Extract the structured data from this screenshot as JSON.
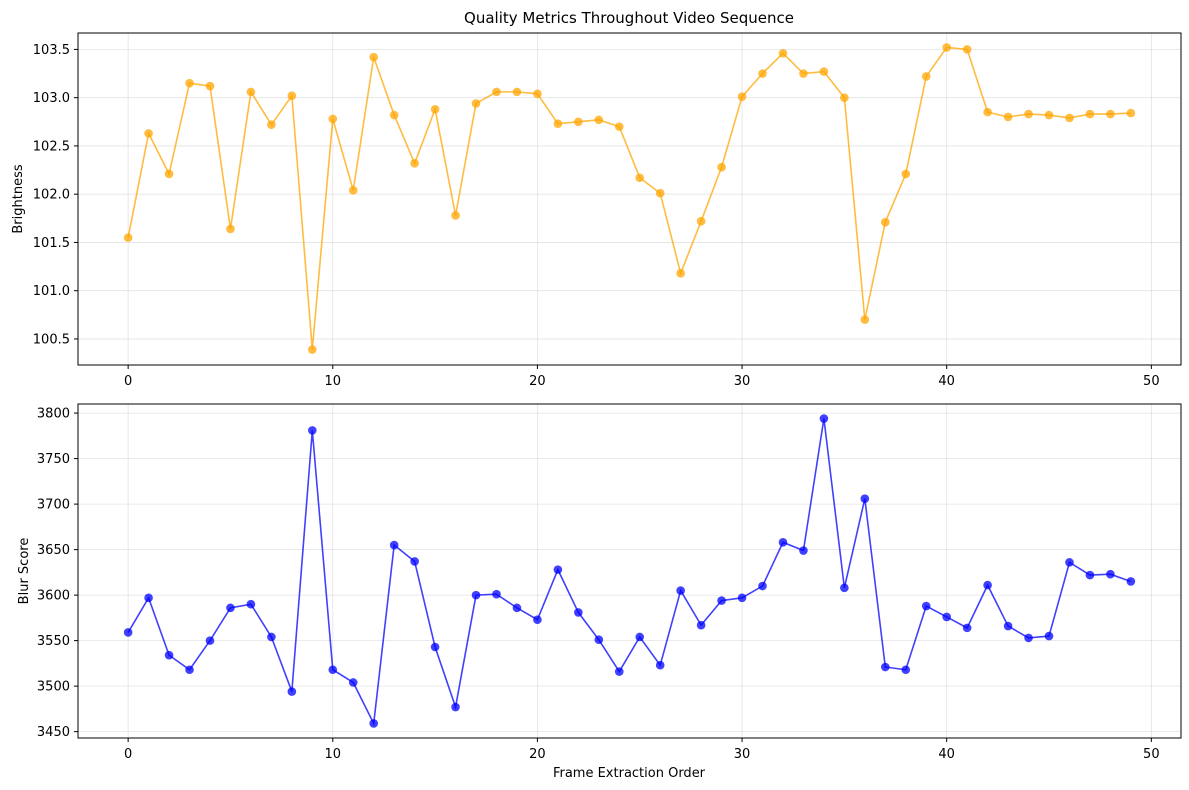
{
  "chart_data": [
    {
      "type": "line",
      "title": "Quality Metrics Throughout Video Sequence",
      "xlabel": "",
      "ylabel": "Brightness",
      "xlim": [
        -2.45,
        51.45
      ],
      "ylim": [
        100.23,
        103.67
      ],
      "xticks": [
        0,
        10,
        20,
        30,
        40,
        50
      ],
      "yticks": [
        100.5,
        101.0,
        101.5,
        102.0,
        102.5,
        103.0,
        103.5
      ],
      "ytick_labels": [
        "100.5",
        "101.0",
        "101.5",
        "102.0",
        "102.5",
        "103.0",
        "103.5"
      ],
      "grid": true,
      "color": "#FFA500",
      "series": [
        {
          "x": [
            0,
            1,
            2,
            3,
            4,
            5,
            6,
            7,
            8,
            9,
            10,
            11,
            12,
            13,
            14,
            15,
            16,
            17,
            18,
            19,
            20,
            21,
            22,
            23,
            24,
            25,
            26,
            27,
            28,
            29,
            30,
            31,
            32,
            33,
            34,
            35,
            36,
            37,
            38,
            39,
            40,
            41,
            42,
            43,
            44,
            45,
            46,
            47,
            48,
            49
          ],
          "values": [
            101.55,
            102.63,
            102.21,
            103.15,
            103.12,
            101.64,
            103.06,
            102.72,
            103.02,
            100.39,
            102.78,
            102.04,
            103.42,
            102.82,
            102.32,
            102.88,
            101.78,
            102.94,
            103.06,
            103.06,
            103.04,
            102.73,
            102.75,
            102.77,
            102.7,
            102.17,
            102.01,
            101.18,
            101.72,
            102.28,
            103.01,
            103.25,
            103.46,
            103.25,
            103.27,
            103.0,
            100.7,
            101.71,
            102.21,
            103.22,
            103.52,
            103.5,
            102.85,
            102.8,
            102.83,
            102.82,
            102.79,
            102.83,
            102.83,
            102.84
          ]
        }
      ]
    },
    {
      "type": "line",
      "title": "",
      "xlabel": "Frame Extraction Order",
      "ylabel": "Blur Score",
      "xlim": [
        -2.45,
        51.45
      ],
      "ylim": [
        3443,
        3810
      ],
      "xticks": [
        0,
        10,
        20,
        30,
        40,
        50
      ],
      "yticks": [
        3450,
        3500,
        3550,
        3600,
        3650,
        3700,
        3750,
        3800
      ],
      "ytick_labels": [
        "3450",
        "3500",
        "3550",
        "3600",
        "3650",
        "3700",
        "3750",
        "3800"
      ],
      "grid": true,
      "color": "#0000FF",
      "series": [
        {
          "x": [
            0,
            1,
            2,
            3,
            4,
            5,
            6,
            7,
            8,
            9,
            10,
            11,
            12,
            13,
            14,
            15,
            16,
            17,
            18,
            19,
            20,
            21,
            22,
            23,
            24,
            25,
            26,
            27,
            28,
            29,
            30,
            31,
            32,
            33,
            34,
            35,
            36,
            37,
            38,
            39,
            40,
            41,
            42,
            43,
            44,
            45,
            46,
            47,
            48,
            49
          ],
          "values": [
            3559,
            3597,
            3534,
            3518,
            3550,
            3586,
            3590,
            3554,
            3494,
            3781,
            3518,
            3504,
            3459,
            3655,
            3637,
            3543,
            3477,
            3600,
            3601,
            3586,
            3573,
            3628,
            3581,
            3551,
            3516,
            3554,
            3523,
            3605,
            3567,
            3594,
            3597,
            3610,
            3658,
            3649,
            3794,
            3608,
            3706,
            3521,
            3518,
            3588,
            3576,
            3564,
            3611,
            3566,
            3553,
            3555,
            3636,
            3622,
            3623,
            3615
          ]
        }
      ]
    }
  ]
}
